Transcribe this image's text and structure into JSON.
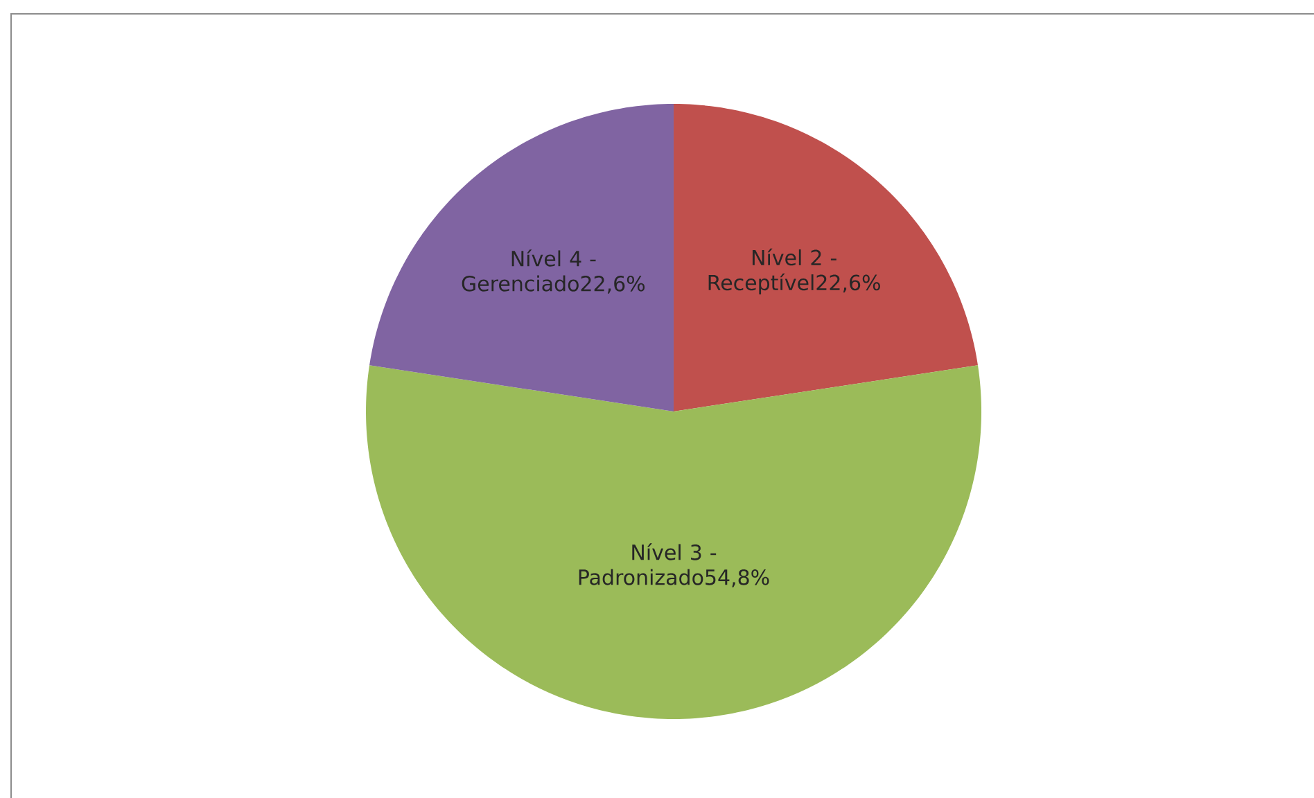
{
  "chart_data": {
    "type": "pie",
    "categories": [
      "Nível 2 - Receptível",
      "Nível 3 - Padronizado",
      "Nível 4 - Gerenciado"
    ],
    "values": [
      22.6,
      54.8,
      22.6
    ],
    "value_labels": [
      "22,6%",
      "54,8%",
      "22,6%"
    ],
    "colors": [
      "#c0504d",
      "#9bbb59",
      "#8064a2"
    ]
  }
}
